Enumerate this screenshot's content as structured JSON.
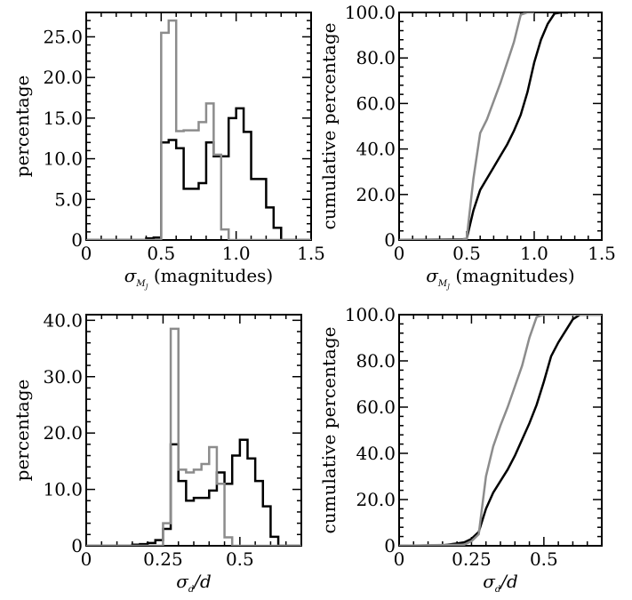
{
  "colors": {
    "black_series": "#000000",
    "gray_series": "#8c8c8c",
    "axis": "#000000"
  },
  "chart_data": [
    {
      "panel": "top-left",
      "type": "histogram",
      "xlabel": {
        "symbol": "σ",
        "subscript": "M",
        "subsubscript": "J",
        "text": " (magnitudes)"
      },
      "ylabel": "percentage",
      "xlim": [
        0,
        1.5
      ],
      "ylim": [
        0,
        28
      ],
      "xticks": [
        0,
        0.5,
        1.0,
        1.5
      ],
      "xticklabels": [
        "0",
        "0.5",
        "1.0",
        "1.5"
      ],
      "yticks": [
        0,
        5,
        10,
        15,
        20,
        25
      ],
      "yticklabels": [
        "0",
        "5.0",
        "10.0",
        "15.0",
        "20.0",
        "25.0"
      ],
      "grid": false,
      "series": [
        {
          "color": "black",
          "edges": [
            0.0,
            0.05,
            0.1,
            0.15,
            0.2,
            0.25,
            0.3,
            0.35,
            0.4,
            0.45,
            0.5,
            0.55,
            0.6,
            0.65,
            0.7,
            0.75,
            0.8,
            0.85,
            0.9,
            0.95,
            1.0,
            1.05,
            1.1,
            1.15,
            1.2,
            1.25,
            1.3,
            1.35,
            1.4,
            1.45,
            1.5
          ],
          "values": [
            0,
            0,
            0,
            0,
            0,
            0,
            0,
            0,
            0.2,
            0.3,
            12.0,
            12.3,
            11.3,
            6.3,
            6.3,
            7.0,
            12.0,
            10.3,
            10.3,
            15.0,
            16.2,
            13.3,
            7.5,
            7.5,
            4.0,
            1.5,
            0,
            0,
            0,
            0
          ]
        },
        {
          "color": "gray",
          "edges": [
            0.0,
            0.05,
            0.1,
            0.15,
            0.2,
            0.25,
            0.3,
            0.35,
            0.4,
            0.45,
            0.5,
            0.55,
            0.6,
            0.65,
            0.7,
            0.75,
            0.8,
            0.85,
            0.9,
            0.95,
            1.0,
            1.05,
            1.1,
            1.15,
            1.2,
            1.25,
            1.3,
            1.35,
            1.4,
            1.45,
            1.5
          ],
          "values": [
            0,
            0,
            0,
            0,
            0,
            0,
            0,
            0,
            0,
            0,
            25.5,
            27.0,
            13.4,
            13.5,
            13.5,
            14.5,
            16.8,
            10.5,
            1.3,
            0,
            0,
            0,
            0,
            0,
            0,
            0,
            0,
            0,
            0,
            0
          ]
        }
      ]
    },
    {
      "panel": "top-right",
      "type": "line",
      "xlabel": {
        "symbol": "σ",
        "subscript": "M",
        "subsubscript": "J",
        "text": " (magnitudes)"
      },
      "ylabel": "cumulative percentage",
      "xlim": [
        0,
        1.5
      ],
      "ylim": [
        0,
        100
      ],
      "xticks": [
        0,
        0.5,
        1.0,
        1.5
      ],
      "xticklabels": [
        "0",
        "0.5",
        "1.0",
        "1.5"
      ],
      "yticks": [
        0,
        20,
        40,
        60,
        80,
        100
      ],
      "yticklabels": [
        "0",
        "20.0",
        "40.0",
        "60.0",
        "80.0",
        "100.0"
      ],
      "grid": false,
      "series": [
        {
          "color": "black",
          "x": [
            0.0,
            0.45,
            0.5,
            0.55,
            0.6,
            0.65,
            0.7,
            0.75,
            0.8,
            0.85,
            0.9,
            0.95,
            1.0,
            1.05,
            1.1,
            1.15,
            1.2,
            1.25
          ],
          "y": [
            0,
            0.2,
            0.5,
            13,
            22,
            27,
            32,
            37,
            42,
            48,
            55,
            65,
            78,
            88,
            95,
            99.5,
            100,
            100
          ]
        },
        {
          "color": "gray",
          "x": [
            0.0,
            0.45,
            0.5,
            0.55,
            0.6,
            0.65,
            0.7,
            0.75,
            0.8,
            0.85,
            0.9,
            0.95,
            1.0
          ],
          "y": [
            0,
            0,
            0.5,
            27,
            47,
            53,
            61,
            69,
            78,
            87,
            99,
            100,
            100
          ]
        }
      ]
    },
    {
      "panel": "bottom-left",
      "type": "histogram",
      "xlabel": {
        "symbol": "σ",
        "subscript": "d",
        "text": "/d"
      },
      "ylabel": "percentage",
      "xlim": [
        0,
        0.7
      ],
      "ylim": [
        0,
        41
      ],
      "xticks": [
        0,
        0.25,
        0.5
      ],
      "xticklabels": [
        "0",
        "0.25",
        "0.5"
      ],
      "yticks": [
        0,
        10,
        20,
        30,
        40
      ],
      "yticklabels": [
        "0",
        "10.0",
        "20.0",
        "30.0",
        "40.0"
      ],
      "grid": false,
      "series": [
        {
          "color": "black",
          "edges": [
            0.0,
            0.025,
            0.05,
            0.075,
            0.1,
            0.125,
            0.15,
            0.175,
            0.2,
            0.225,
            0.25,
            0.275,
            0.3,
            0.325,
            0.35,
            0.375,
            0.4,
            0.425,
            0.45,
            0.475,
            0.5,
            0.525,
            0.55,
            0.575,
            0.6,
            0.625,
            0.65,
            0.675,
            0.7
          ],
          "values": [
            0,
            0,
            0,
            0,
            0,
            0,
            0.2,
            0.3,
            0.5,
            1.0,
            3.0,
            18.0,
            11.5,
            8.0,
            8.5,
            8.5,
            9.8,
            13.0,
            11.0,
            16.0,
            18.8,
            15.5,
            11.5,
            7.0,
            1.6,
            0,
            0,
            0
          ]
        },
        {
          "color": "gray",
          "edges": [
            0.0,
            0.025,
            0.05,
            0.075,
            0.1,
            0.125,
            0.15,
            0.175,
            0.2,
            0.225,
            0.25,
            0.275,
            0.3,
            0.325,
            0.35,
            0.375,
            0.4,
            0.425,
            0.45,
            0.475,
            0.5,
            0.525,
            0.55,
            0.575,
            0.6,
            0.625,
            0.65,
            0.675,
            0.7
          ],
          "values": [
            0,
            0,
            0,
            0,
            0,
            0,
            0,
            0,
            0,
            0,
            4.0,
            38.5,
            13.5,
            13.0,
            13.5,
            14.5,
            17.5,
            11.0,
            1.5,
            0,
            0,
            0,
            0,
            0,
            0,
            0,
            0,
            0
          ]
        }
      ]
    },
    {
      "panel": "bottom-right",
      "type": "line",
      "xlabel": {
        "symbol": "σ",
        "subscript": "d",
        "text": "/d"
      },
      "ylabel": "cumulative percentage",
      "xlim": [
        0,
        0.7
      ],
      "ylim": [
        0,
        100
      ],
      "xticks": [
        0,
        0.25,
        0.5
      ],
      "xticklabels": [
        "0",
        "0.25",
        "0.5"
      ],
      "yticks": [
        0,
        20,
        40,
        60,
        80,
        100
      ],
      "yticklabels": [
        "0",
        "20.0",
        "40.0",
        "60.0",
        "80.0",
        "100.0"
      ],
      "grid": false,
      "series": [
        {
          "color": "black",
          "x": [
            0.0,
            0.15,
            0.2,
            0.225,
            0.25,
            0.275,
            0.3,
            0.325,
            0.35,
            0.375,
            0.4,
            0.425,
            0.45,
            0.475,
            0.5,
            0.525,
            0.55,
            0.575,
            0.6,
            0.625,
            0.7
          ],
          "y": [
            0,
            0.2,
            1.0,
            1.5,
            3,
            6,
            16,
            23,
            28,
            33,
            39,
            46,
            53,
            61,
            71,
            82,
            88,
            93,
            98,
            100,
            100
          ]
        },
        {
          "color": "gray",
          "x": [
            0.0,
            0.225,
            0.25,
            0.275,
            0.3,
            0.325,
            0.35,
            0.375,
            0.4,
            0.425,
            0.45,
            0.475,
            0.5,
            0.525,
            0.7
          ],
          "y": [
            0,
            0.5,
            2,
            5,
            30,
            43,
            52,
            60,
            69,
            78,
            90,
            99,
            100,
            100,
            100
          ]
        }
      ]
    }
  ]
}
